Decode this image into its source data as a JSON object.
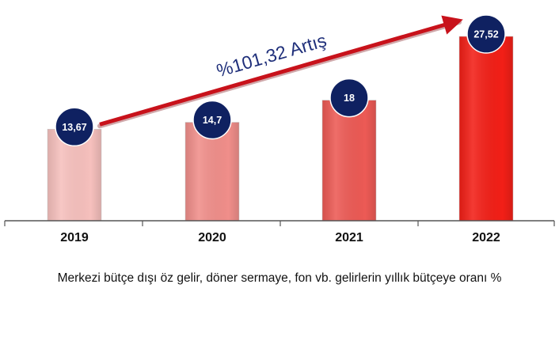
{
  "chart_data": {
    "type": "bar",
    "categories": [
      "2019",
      "2020",
      "2021",
      "2022"
    ],
    "values": [
      13.67,
      14.7,
      18,
      27.52
    ],
    "value_labels": [
      "13,67",
      "14,7",
      "18",
      "27,52"
    ],
    "bar_colors": [
      "#f6c0bd",
      "#f08e8a",
      "#ec5a55",
      "#f21f17"
    ],
    "label_bubble_color": "#0f2161",
    "ylim": [
      0,
      30
    ],
    "grid": false,
    "title": "",
    "xlabel": "Merkezi bütçe dışı öz gelir, döner sermaye, fon vb. gelirlerin yıllık bütçeye oranı %",
    "ylabel": "",
    "annotation": {
      "text": "%101,32 Artış",
      "arrow_color": "#c8121b",
      "text_color": "#1f2f7a"
    }
  }
}
